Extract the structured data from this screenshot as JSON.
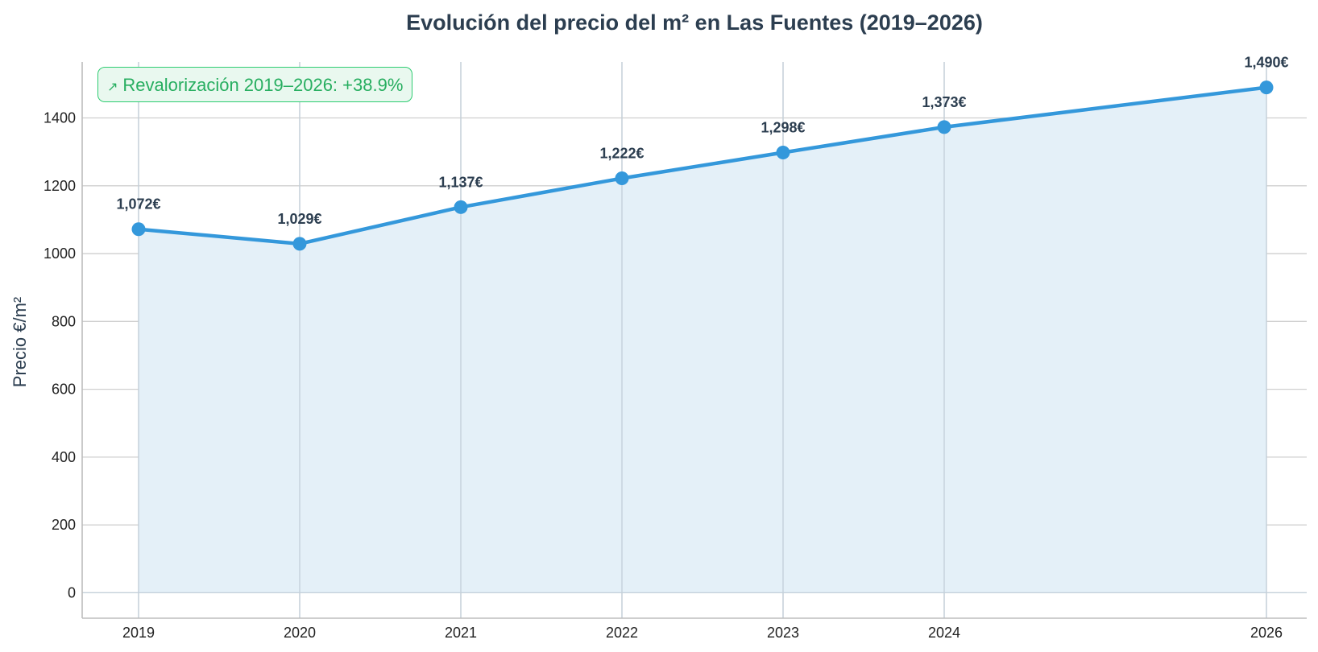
{
  "chart_data": {
    "type": "area",
    "title": "Evolución del precio del m² en Las Fuentes (2019–2026)",
    "xlabel": "",
    "ylabel": "Precio €/m²",
    "x": [
      2019,
      2020,
      2021,
      2022,
      2023,
      2024,
      2026
    ],
    "values": [
      1072,
      1029,
      1137,
      1222,
      1298,
      1373,
      1490
    ],
    "point_labels": [
      "1,072€",
      "1,029€",
      "1,137€",
      "1,222€",
      "1,298€",
      "1,373€",
      "1,490€"
    ],
    "x_ticks": [
      "2019",
      "2020",
      "2021",
      "2022",
      "2023",
      "2024",
      "2026"
    ],
    "y_ticks": [
      "0",
      "200",
      "400",
      "600",
      "800",
      "1000",
      "1200",
      "1400"
    ],
    "ylim": [
      -75,
      1565
    ],
    "grid": true,
    "annotation": {
      "icon": "chart-up-icon",
      "text": "Revalorización 2019–2026: +38.9%"
    },
    "colors": {
      "line": "#3498db",
      "fill": "#e4f0f8",
      "title": "#2c3e50",
      "annotation": "#27ae60"
    }
  }
}
